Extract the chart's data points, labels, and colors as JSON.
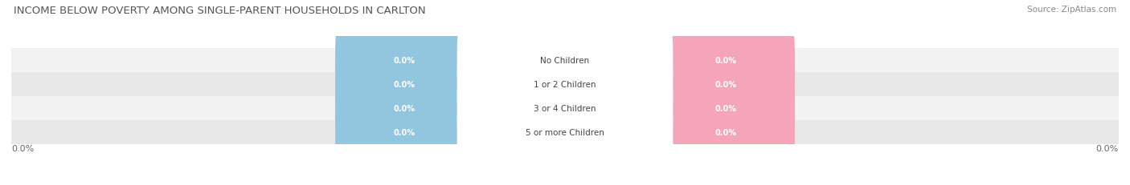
{
  "title": "INCOME BELOW POVERTY AMONG SINGLE-PARENT HOUSEHOLDS IN CARLTON",
  "source": "Source: ZipAtlas.com",
  "categories": [
    "No Children",
    "1 or 2 Children",
    "3 or 4 Children",
    "5 or more Children"
  ],
  "single_father_values": [
    0.0,
    0.0,
    0.0,
    0.0
  ],
  "single_mother_values": [
    0.0,
    0.0,
    0.0,
    0.0
  ],
  "father_color": "#92c5de",
  "mother_color": "#f4a6b8",
  "row_bg_colors": [
    "#f2f2f2",
    "#e8e8e8"
  ],
  "title_fontsize": 9.5,
  "source_fontsize": 7.5,
  "background_color": "#ffffff",
  "axis_label_left": "0.0%",
  "axis_label_right": "0.0%"
}
